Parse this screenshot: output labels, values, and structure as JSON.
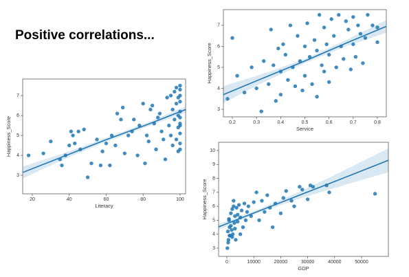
{
  "title": "Positive correlations...",
  "chart_data": [
    {
      "type": "scatter",
      "xlabel": "Literacy",
      "ylabel": "Happiness_Score",
      "color": "#1f77b4",
      "x": [
        18,
        26,
        30,
        35,
        36,
        38,
        40,
        41,
        42,
        43,
        45,
        46,
        48,
        50,
        52,
        55,
        57,
        58,
        60,
        62,
        63,
        65,
        66,
        68,
        69,
        70,
        72,
        74,
        75,
        77,
        78,
        80,
        81,
        82,
        83,
        84,
        85,
        86,
        87,
        88,
        89,
        90,
        91,
        92,
        93,
        94,
        95,
        95,
        96,
        96,
        97,
        97,
        98,
        98,
        98,
        99,
        99,
        99,
        99,
        100,
        100,
        100,
        100,
        100,
        100,
        100,
        100,
        100,
        100,
        100
      ],
      "y": [
        4.0,
        4.1,
        4.7,
        3.8,
        3.5,
        4.0,
        4.5,
        5.2,
        5.0,
        4.6,
        5.2,
        4.3,
        5.3,
        2.9,
        3.6,
        4.8,
        3.5,
        4.2,
        4.6,
        3.5,
        5.0,
        4.5,
        6.1,
        5.8,
        6.4,
        4.1,
        5.0,
        5.2,
        5.8,
        4.0,
        5.5,
        6.6,
        3.6,
        5.0,
        4.7,
        6.3,
        6.5,
        5.6,
        4.3,
        5.9,
        6.1,
        5.2,
        4.8,
        3.8,
        6.9,
        5.5,
        7.0,
        5.0,
        6.3,
        4.5,
        7.2,
        5.8,
        6.6,
        4.8,
        7.4,
        6.0,
        5.4,
        6.9,
        4.2,
        7.5,
        7.3,
        6.2,
        5.9,
        5.5,
        5.1,
        4.6,
        6.7,
        7.0,
        5.6,
        4.3
      ],
      "fit": {
        "x": [
          15,
          37,
          59,
          81,
          103
        ],
        "y": [
          3.15,
          3.95,
          4.75,
          5.5,
          6.3
        ],
        "lower": [
          2.85,
          3.8,
          4.65,
          5.4,
          6.15
        ],
        "upper": [
          3.45,
          4.1,
          4.85,
          5.6,
          6.45
        ]
      },
      "xlim": [
        14.8,
        103
      ],
      "ylim": [
        2.07,
        7.83
      ],
      "xticks": [
        20,
        40,
        60,
        80,
        100
      ],
      "yticks": [
        3,
        4,
        5,
        6,
        7
      ]
    },
    {
      "type": "scatter",
      "xlabel": "Service",
      "ylabel": "Happiness_Score",
      "color": "#1f77b4",
      "x": [
        0.18,
        0.2,
        0.22,
        0.25,
        0.28,
        0.3,
        0.32,
        0.33,
        0.35,
        0.36,
        0.37,
        0.38,
        0.39,
        0.4,
        0.4,
        0.41,
        0.42,
        0.43,
        0.44,
        0.45,
        0.46,
        0.47,
        0.48,
        0.49,
        0.5,
        0.5,
        0.51,
        0.52,
        0.53,
        0.54,
        0.55,
        0.55,
        0.56,
        0.57,
        0.58,
        0.58,
        0.59,
        0.6,
        0.6,
        0.61,
        0.62,
        0.63,
        0.64,
        0.65,
        0.66,
        0.67,
        0.68,
        0.69,
        0.7,
        0.7,
        0.71,
        0.72,
        0.73,
        0.74,
        0.75,
        0.76,
        0.78,
        0.8,
        0.8
      ],
      "y": [
        3.5,
        6.4,
        4.6,
        3.8,
        5.0,
        4.0,
        2.9,
        5.3,
        4.2,
        6.8,
        5.1,
        3.4,
        5.9,
        4.8,
        3.7,
        6.1,
        5.6,
        4.4,
        7.0,
        5.0,
        4.1,
        6.5,
        5.3,
        3.9,
        6.0,
        4.6,
        7.1,
        5.5,
        4.2,
        6.3,
        5.8,
        3.6,
        7.5,
        5.1,
        6.9,
        4.8,
        6.1,
        5.6,
        4.3,
        7.3,
        6.5,
        5.0,
        7.5,
        6.0,
        5.4,
        7.2,
        6.8,
        4.9,
        7.4,
        6.1,
        5.5,
        7.0,
        6.6,
        5.2,
        6.4,
        7.5,
        7.0,
        6.2,
        6.9
      ],
      "fit": {
        "x": [
          0.163,
          0.33,
          0.5,
          0.67,
          0.837
        ],
        "y": [
          3.7,
          4.5,
          5.3,
          6.15,
          6.95
        ],
        "lower": [
          3.3,
          4.3,
          5.2,
          6.0,
          6.65
        ],
        "upper": [
          4.1,
          4.7,
          5.4,
          6.3,
          7.25
        ]
      },
      "xlim": [
        0.163,
        0.837
      ],
      "ylim": [
        2.64,
        7.75
      ],
      "xticks": [
        0.2,
        0.3,
        0.4,
        0.5,
        0.6,
        0.7,
        0.8
      ],
      "yticks": [
        3,
        4,
        5,
        6,
        7
      ]
    },
    {
      "type": "scatter",
      "xlabel": "GDP",
      "ylabel": "Happiness_Score",
      "color": "#1f77b4",
      "x": [
        200,
        400,
        600,
        800,
        1000,
        1200,
        1500,
        1800,
        2000,
        2200,
        2500,
        2800,
        3000,
        3300,
        3600,
        4000,
        4500,
        5000,
        5500,
        6000,
        6500,
        7000,
        7500,
        8000,
        9000,
        10000,
        11000,
        12000,
        13000,
        14000,
        15000,
        16000,
        17000,
        18000,
        20000,
        21000,
        22000,
        24000,
        25000,
        27000,
        28000,
        30000,
        31000,
        32000,
        37000,
        38000,
        55000,
        500,
        1000,
        1500,
        2000,
        3000,
        4000,
        5000,
        800,
        2500
      ],
      "y": [
        3.0,
        4.2,
        3.6,
        5.0,
        4.5,
        3.9,
        5.5,
        4.3,
        5.8,
        4.0,
        6.0,
        4.8,
        5.3,
        3.6,
        5.9,
        4.9,
        6.1,
        5.2,
        5.7,
        4.5,
        6.2,
        5.0,
        5.6,
        6.0,
        5.3,
        6.3,
        7.0,
        5.0,
        6.4,
        5.6,
        6.8,
        5.9,
        4.5,
        6.2,
        5.5,
        6.6,
        7.1,
        6.4,
        6.0,
        7.4,
        7.2,
        6.5,
        7.5,
        7.4,
        7.5,
        7.0,
        6.9,
        3.4,
        3.9,
        4.6,
        3.8,
        4.4,
        5.4,
        4.0,
        5.1,
        6.4
      ],
      "fit": {
        "x": [
          -3000,
          12000,
          27000,
          42000,
          60000
        ],
        "y": [
          4.53,
          5.67,
          6.8,
          7.93,
          9.3
        ],
        "lower": [
          4.33,
          5.55,
          6.55,
          7.43,
          8.45
        ],
        "upper": [
          4.73,
          5.79,
          7.05,
          8.43,
          10.15
        ]
      },
      "xlim": [
        -3061,
        59950
      ],
      "ylim": [
        2.41,
        10.59
      ],
      "xticks": [
        0,
        10000,
        20000,
        30000,
        40000,
        50000
      ],
      "yticks": [
        3,
        4,
        5,
        6,
        7,
        8,
        9,
        10
      ]
    }
  ]
}
